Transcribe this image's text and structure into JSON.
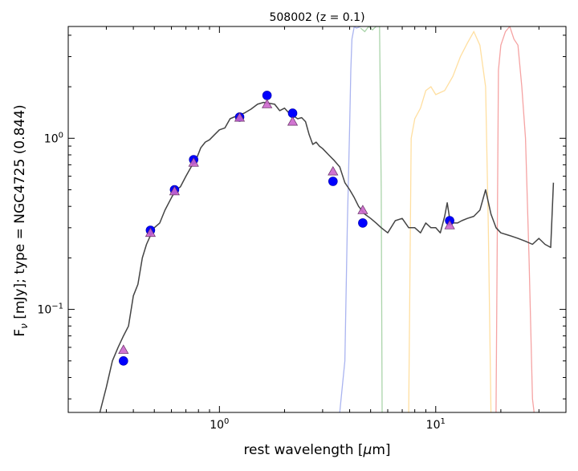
{
  "chart_data": {
    "type": "scatter",
    "title": "508002 (z = 0.1)",
    "xlabel": "rest wavelength [$\\mu$m]",
    "xlabel_parts": {
      "pre": "rest wavelength [",
      "mu": "μ",
      "post": "m]"
    },
    "ylabel": "F$_\\nu$ [mJy];  type = NGC4725 (0.844)",
    "ylabel_parts": {
      "F": "F",
      "nu": "ν",
      "rest": " [mJy];  type = NGC4725 (0.844)"
    },
    "xscale": "log",
    "yscale": "log",
    "xlim": [
      0.2,
      40
    ],
    "ylim": [
      0.025,
      4.5
    ],
    "grid": false,
    "x_tick_labels": [
      {
        "value": 1,
        "base": "10",
        "exp": "0"
      },
      {
        "value": 10,
        "base": "10",
        "exp": "1"
      }
    ],
    "y_tick_labels": [
      {
        "value": 0.1,
        "base": "10",
        "exp": "−1"
      },
      {
        "value": 1,
        "base": "10",
        "exp": "0"
      }
    ],
    "observed_points": {
      "color": "#0000ff",
      "x": [
        0.36,
        0.48,
        0.62,
        0.76,
        1.24,
        1.66,
        2.18,
        3.35,
        4.6,
        11.6
      ],
      "y": [
        0.05,
        0.29,
        0.5,
        0.75,
        1.33,
        1.78,
        1.4,
        0.56,
        0.32,
        0.33
      ]
    },
    "model_points": {
      "color": "#cc66cc",
      "marker": "triangle",
      "x": [
        0.36,
        0.48,
        0.62,
        0.76,
        1.24,
        1.66,
        2.18,
        3.35,
        4.6,
        11.6
      ],
      "y": [
        0.058,
        0.28,
        0.49,
        0.72,
        1.32,
        1.58,
        1.25,
        0.64,
        0.38,
        0.31
      ]
    },
    "model_sed": {
      "color": "#444444",
      "x": [
        0.28,
        0.3,
        0.32,
        0.34,
        0.36,
        0.38,
        0.4,
        0.42,
        0.44,
        0.46,
        0.48,
        0.5,
        0.53,
        0.56,
        0.6,
        0.63,
        0.66,
        0.7,
        0.74,
        0.78,
        0.82,
        0.86,
        0.9,
        0.95,
        1.0,
        1.06,
        1.12,
        1.2,
        1.3,
        1.4,
        1.5,
        1.6,
        1.7,
        1.8,
        1.9,
        2.0,
        2.1,
        2.2,
        2.3,
        2.4,
        2.5,
        2.6,
        2.7,
        2.8,
        2.9,
        3.0,
        3.2,
        3.4,
        3.6,
        3.8,
        4.0,
        4.2,
        4.4,
        4.7,
        5.0,
        5.3,
        5.6,
        6.0,
        6.5,
        7.0,
        7.5,
        8.0,
        8.5,
        9.0,
        9.5,
        10.0,
        10.5,
        11.0,
        11.3,
        11.6,
        12.0,
        12.6,
        13.2,
        14.0,
        15.0,
        16.0,
        17.0,
        18.0,
        19.0,
        20.0,
        22.0,
        24.0,
        26.0,
        28.0,
        30.0,
        32.0,
        34.0,
        35.0
      ],
      "y": [
        0.022,
        0.035,
        0.05,
        0.06,
        0.07,
        0.08,
        0.12,
        0.14,
        0.2,
        0.24,
        0.27,
        0.3,
        0.32,
        0.38,
        0.45,
        0.5,
        0.52,
        0.6,
        0.68,
        0.75,
        0.88,
        0.95,
        0.98,
        1.05,
        1.12,
        1.15,
        1.3,
        1.35,
        1.4,
        1.48,
        1.58,
        1.62,
        1.6,
        1.58,
        1.45,
        1.5,
        1.4,
        1.35,
        1.3,
        1.32,
        1.25,
        1.05,
        0.92,
        0.95,
        0.9,
        0.87,
        0.8,
        0.74,
        0.68,
        0.55,
        0.5,
        0.45,
        0.4,
        0.36,
        0.34,
        0.32,
        0.3,
        0.28,
        0.33,
        0.34,
        0.3,
        0.3,
        0.28,
        0.32,
        0.3,
        0.3,
        0.28,
        0.35,
        0.42,
        0.34,
        0.32,
        0.32,
        0.33,
        0.34,
        0.35,
        0.38,
        0.5,
        0.36,
        0.3,
        0.28,
        0.27,
        0.26,
        0.25,
        0.24,
        0.26,
        0.24,
        0.23,
        0.55
      ]
    },
    "filter_curves": [
      {
        "color": "#aab4f0",
        "x": [
          3.6,
          3.8,
          3.9,
          4.0,
          4.05,
          4.1,
          4.2,
          4.3,
          4.5
        ],
        "y": [
          0.025,
          0.05,
          0.3,
          1.2,
          2.5,
          3.8,
          4.5,
          4.4,
          4.5
        ]
      },
      {
        "color": "#aad4aa",
        "x": [
          4.5,
          4.7,
          4.9,
          5.1,
          5.3,
          5.5,
          5.6,
          5.65
        ],
        "y": [
          4.4,
          4.2,
          4.5,
          4.3,
          4.6,
          4.5,
          0.5,
          0.025
        ]
      },
      {
        "color": "#ffdfa0",
        "x": [
          7.5,
          7.7,
          8.0,
          8.5,
          9.0,
          9.5,
          10.0,
          11.0,
          12.0,
          13.0,
          14.0,
          15.0,
          16.0,
          17.0,
          17.5,
          18.0
        ],
        "y": [
          0.025,
          1.0,
          1.3,
          1.5,
          1.9,
          2.0,
          1.8,
          1.9,
          2.3,
          3.0,
          3.6,
          4.2,
          3.5,
          2.0,
          0.3,
          0.025
        ]
      },
      {
        "color": "#f5a3a3",
        "x": [
          19.0,
          19.5,
          20.0,
          21.0,
          22.0,
          23.0,
          24.0,
          25.0,
          26.0,
          27.0,
          28.0,
          28.5
        ],
        "y": [
          0.025,
          2.5,
          3.5,
          4.2,
          4.5,
          3.8,
          3.5,
          2.0,
          1.0,
          0.2,
          0.03,
          0.025
        ]
      }
    ]
  }
}
